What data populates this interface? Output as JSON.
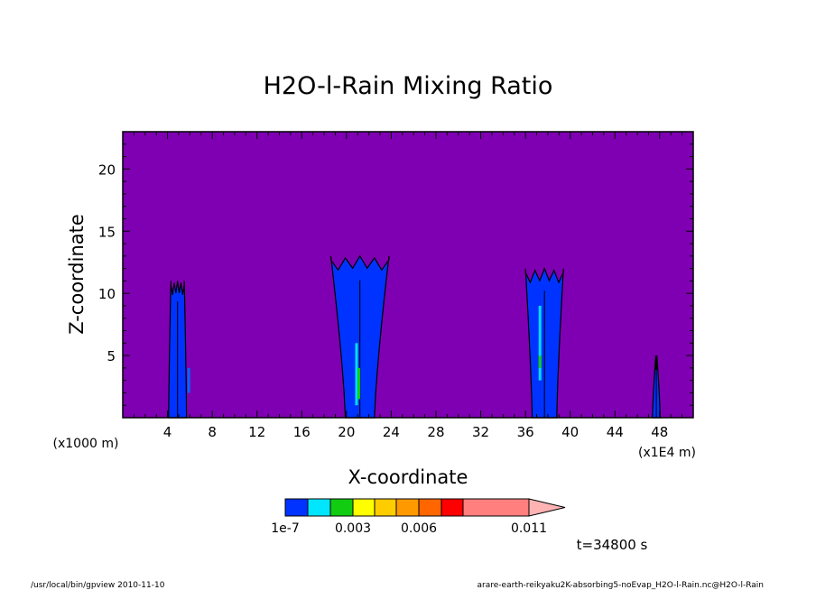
{
  "chart_data": {
    "type": "heatmap",
    "title": "H2O-l-Rain Mixing Ratio",
    "xlabel": "X-coordinate",
    "ylabel": "Z-coordinate",
    "x_unit_left": "(x1000 m)",
    "x_unit_right": "(x1E4 m)",
    "xlim": [
      0,
      51
    ],
    "ylim": [
      0,
      23
    ],
    "x_ticks": [
      4,
      8,
      12,
      16,
      20,
      24,
      28,
      32,
      36,
      40,
      44,
      48
    ],
    "y_ticks": [
      5,
      10,
      15,
      20
    ],
    "background_color": "#7f00b3",
    "plumes": [
      {
        "name": "plume-1",
        "center": 4.9,
        "top": 11,
        "base_halfwidth": 0.8,
        "top_halfwidth": 0.6,
        "inner": [
          {
            "color": "#0066ff",
            "xs": [
              5.9
            ],
            "z0": 2,
            "z1": 4
          }
        ]
      },
      {
        "name": "plume-2",
        "center": 21.2,
        "top": 13,
        "base_halfwidth": 1.3,
        "top_halfwidth": 2.6,
        "inner": [
          {
            "color": "#00ddff",
            "xs": [
              20.9
            ],
            "z0": 1,
            "z1": 6
          },
          {
            "color": "#11cc11",
            "xs": [
              21.1
            ],
            "z0": 1.5,
            "z1": 4
          }
        ]
      },
      {
        "name": "plume-3",
        "center": 37.7,
        "top": 12,
        "base_halfwidth": 1.1,
        "top_halfwidth": 1.7,
        "inner": [
          {
            "color": "#00ddff",
            "xs": [
              37.3
            ],
            "z0": 3,
            "z1": 9
          },
          {
            "color": "#11cc11",
            "xs": [
              37.3
            ],
            "z0": 4,
            "z1": 5
          }
        ]
      },
      {
        "name": "plume-4",
        "center": 47.7,
        "top": 5,
        "base_halfwidth": 0.35,
        "top_halfwidth": 0.05,
        "inner": []
      }
    ],
    "colorbar": {
      "colors": [
        "#0033ff",
        "#00e6ff",
        "#11cc11",
        "#ffff00",
        "#ffcc00",
        "#ff9900",
        "#ff6600",
        "#ff0000",
        "#ff7f7f"
      ],
      "arrow_color": "#ffb3b3",
      "labels": [
        "1e-7",
        "0.003",
        "0.006",
        "0.011"
      ]
    },
    "time_label": "t=34800 s"
  },
  "footer": {
    "left": "/usr/local/bin/gpview  2010-11-10",
    "right": "arare-earth-reikyaku2K-absorbing5-noEvap_H2O-l-Rain.nc@H2O-l-Rain"
  }
}
